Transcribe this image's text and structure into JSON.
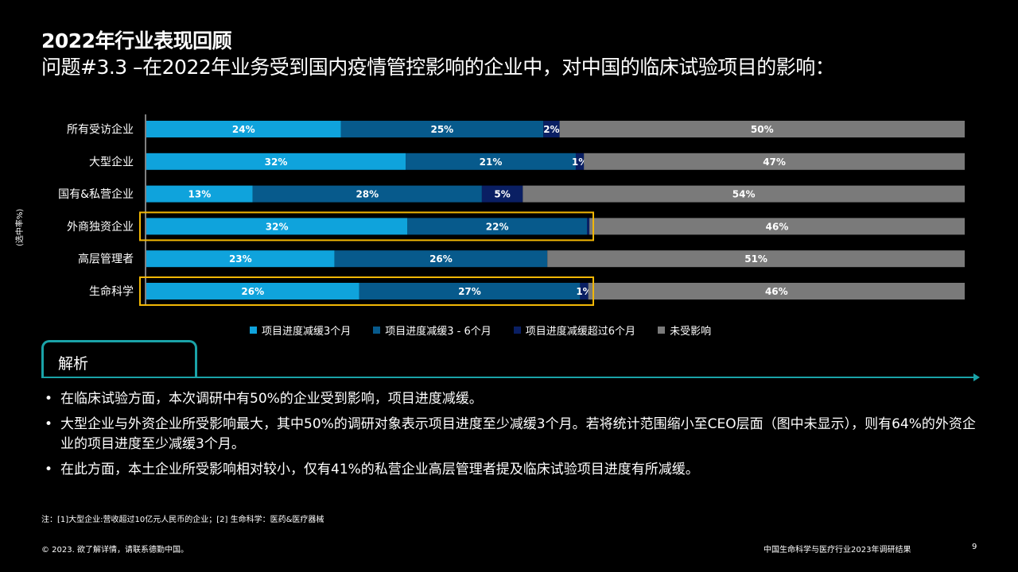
{
  "header": {
    "title": "2022年行业表现回顾",
    "subtitle": "问题#3.3 –在2022年业务受到国内疫情管控影响的企业中，对中国的临床试验项目的影响："
  },
  "chart_data": {
    "type": "bar",
    "orientation": "horizontal",
    "stacked": true,
    "ylabel": "(选中率%)",
    "categories": [
      "所有受访企业",
      "大型企业",
      "国有&私营企业",
      "外商独资企业",
      "高层管理者",
      "生命科学"
    ],
    "series": [
      {
        "name": "项目进度减缓3个月",
        "color": "#0fa3dc",
        "values": [
          24,
          32,
          13,
          32,
          23,
          26
        ],
        "labels": [
          "24%",
          "32%",
          "13%",
          "32%",
          "23%",
          "26%"
        ]
      },
      {
        "name": "项目进度减缓3 - 6个月",
        "color": "#075a8c",
        "values": [
          25,
          21,
          28,
          22,
          26,
          27
        ],
        "labels": [
          "25%",
          "21%",
          "28%",
          "22%",
          "26%",
          "27%"
        ]
      },
      {
        "name": "项目进度减缓超过6个月",
        "color": "#0a1f63",
        "values": [
          2,
          1,
          5,
          0.3,
          0,
          1
        ],
        "labels": [
          "2%",
          "1%",
          "5%",
          "",
          "",
          "1%"
        ]
      },
      {
        "name": "未受影响",
        "color": "#7a7a7a",
        "values": [
          50,
          47,
          54,
          46,
          51,
          46
        ],
        "labels": [
          "50%",
          "47%",
          "54%",
          "46%",
          "51%",
          "46%"
        ]
      }
    ],
    "highlighted_categories": [
      "外商独资企业",
      "生命科学"
    ],
    "highlight_color": "#f2b705",
    "legend_position": "bottom",
    "grid": false
  },
  "analysis": {
    "tab_label": "解析",
    "bullet_symbol": "•",
    "bullets": [
      "在临床试验方面，本次调研中有50%的企业受到影响，项目进度减缓。",
      "大型企业与外资企业所受影响最大，其中50%的调研对象表示项目进度至少减缓3个月。若将统计范围缩小至CEO层面（图中未显示），则有64%的外资企业的项目进度至少减缓3个月。",
      "在此方面，本土企业所受影响相对较小，仅有41%的私营企业高层管理者提及临床试验项目进度有所减缓。"
    ]
  },
  "note": "注：[1]大型企业:营收超过10亿元人民币的企业；[2] 生命科学：医药&医疗器械",
  "footer": {
    "copyright": "© 2023. 欲了解详情，请联系德勤中国。",
    "report_title": "中国生命科学与医疗行业2023年调研结果",
    "page_number": "9"
  },
  "colors": {
    "accent": "#1aa3a8",
    "background": "#000000"
  }
}
